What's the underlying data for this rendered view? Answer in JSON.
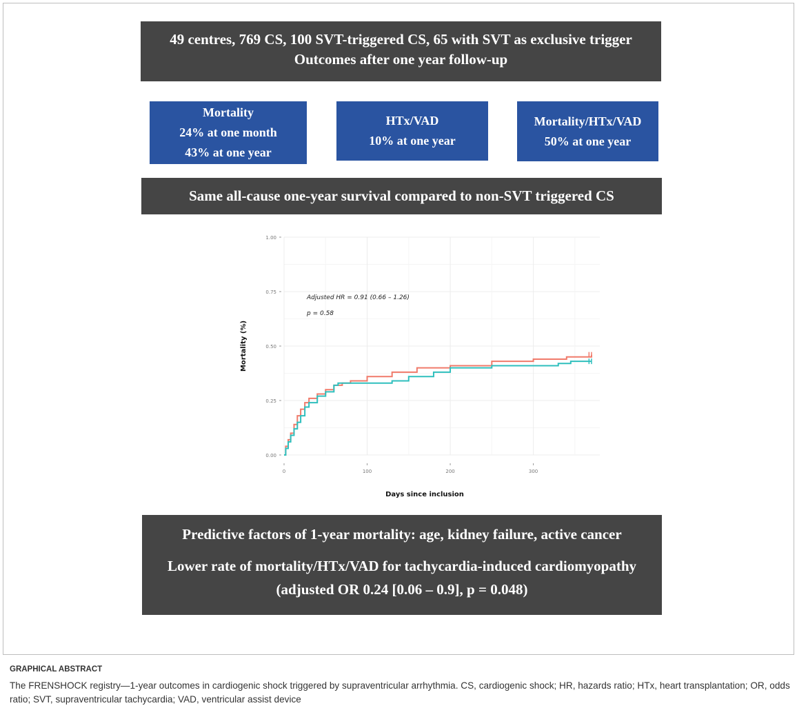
{
  "header": {
    "line1": "49 centres, 769 CS, 100 SVT-triggered CS, 65 with SVT as exclusive trigger",
    "line2": "Outcomes after one year follow-up"
  },
  "boxes": [
    {
      "title": "Mortality",
      "lines": [
        "24% at one month",
        "43% at one year"
      ]
    },
    {
      "title": "HTx/VAD",
      "lines": [
        "10% at one year"
      ]
    },
    {
      "title": "Mortality/HTx/VAD",
      "lines": [
        "50% at one year"
      ]
    }
  ],
  "survival_banner": "Same all-cause one-year survival compared to non-SVT triggered CS",
  "predictors": {
    "line1": "Predictive factors of 1-year mortality: age, kidney failure, active cancer",
    "line2": "Lower rate of mortality/HTx/VAD for tachycardia-induced cardiomyopathy",
    "line3": "(adjusted OR 0.24 [0.06 – 0.9], p = 0.048)"
  },
  "chart_data": {
    "type": "line",
    "xlabel": "Days since inclusion",
    "ylabel": "Mortality (%)",
    "xlim": [
      0,
      380
    ],
    "ylim": [
      0,
      1
    ],
    "xticks": [
      0,
      100,
      200,
      300
    ],
    "yticks": [
      0.0,
      0.25,
      0.5,
      0.75,
      1.0
    ],
    "ytick_labels": [
      "0.00",
      "0.25",
      "0.50",
      "0.75",
      "1.00"
    ],
    "grid": true,
    "annotation": [
      "Adjusted HR = 0.91 (0.66 – 1.26)",
      "p = 0.58"
    ],
    "series": [
      {
        "color": "#f07a6a",
        "x": [
          0,
          2,
          5,
          8,
          12,
          16,
          20,
          25,
          30,
          40,
          50,
          60,
          70,
          80,
          100,
          130,
          160,
          200,
          250,
          300,
          340,
          370
        ],
        "y": [
          0,
          0.04,
          0.07,
          0.1,
          0.14,
          0.18,
          0.21,
          0.24,
          0.26,
          0.28,
          0.3,
          0.32,
          0.33,
          0.34,
          0.36,
          0.38,
          0.4,
          0.41,
          0.43,
          0.44,
          0.45,
          0.46
        ]
      },
      {
        "color": "#2ebfbd",
        "x": [
          0,
          2,
          5,
          8,
          12,
          16,
          20,
          25,
          30,
          40,
          50,
          60,
          65,
          100,
          130,
          150,
          180,
          200,
          250,
          300,
          330,
          345,
          370
        ],
        "y": [
          0,
          0.03,
          0.06,
          0.09,
          0.12,
          0.15,
          0.18,
          0.22,
          0.24,
          0.27,
          0.29,
          0.32,
          0.33,
          0.33,
          0.34,
          0.36,
          0.38,
          0.4,
          0.41,
          0.41,
          0.42,
          0.43,
          0.43
        ]
      }
    ]
  },
  "caption": {
    "title": "GRAPHICAL ABSTRACT",
    "text": "The FRENSHOCK registry—1-year outcomes in cardiogenic shock triggered by supraventricular arrhythmia. CS, cardiogenic shock; HR, hazards ratio; HTx, heart transplantation; OR, odds ratio; SVT, supraventricular tachycardia; VAD, ventricular assist device"
  }
}
